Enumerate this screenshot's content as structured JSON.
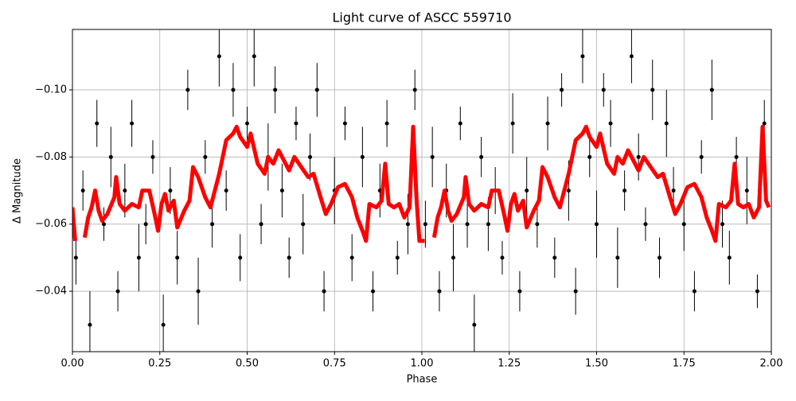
{
  "chart_data": {
    "type": "scatter",
    "title": "Light curve of ASCC 559710",
    "xlabel": "Phase",
    "ylabel": "Δ Magnitude",
    "xlim": [
      0,
      2
    ],
    "ylim": [
      -0.118,
      -0.022
    ],
    "invert_y": true,
    "grid": true,
    "xticks": [
      {
        "value": 0,
        "label": "0.00"
      },
      {
        "value": 0.25,
        "label": "0.25"
      },
      {
        "value": 0.5,
        "label": "0.50"
      },
      {
        "value": 0.75,
        "label": "0.75"
      },
      {
        "value": 1,
        "label": "1.00"
      },
      {
        "value": 1.25,
        "label": "1.25"
      },
      {
        "value": 1.5,
        "label": "1.50"
      },
      {
        "value": 1.75,
        "label": "1.75"
      },
      {
        "value": 2,
        "label": "2.00"
      }
    ],
    "yticks": [
      {
        "value": -0.1,
        "label": "−0.10"
      },
      {
        "value": -0.08,
        "label": "−0.08"
      },
      {
        "value": -0.06,
        "label": "−0.06"
      },
      {
        "value": -0.04,
        "label": "−0.04"
      }
    ],
    "points": {
      "color": "#000000",
      "x": [
        0.01,
        0.03,
        0.05,
        0.07,
        0.09,
        0.11,
        0.13,
        0.15,
        0.17,
        0.19,
        0.21,
        0.23,
        0.26,
        0.28,
        0.3,
        0.33,
        0.36,
        0.38,
        0.4,
        0.42,
        0.44,
        0.46,
        0.48,
        0.5,
        0.52,
        0.54,
        0.56,
        0.58,
        0.6,
        0.62,
        0.64,
        0.66,
        0.68,
        0.7,
        0.72,
        0.75,
        0.78,
        0.8,
        0.83,
        0.86,
        0.88,
        0.9,
        0.93,
        0.96,
        0.98,
        1.01,
        1.03,
        1.05,
        1.07,
        1.09,
        1.11,
        1.13,
        1.15,
        1.17,
        1.19,
        1.21,
        1.23,
        1.26,
        1.28,
        1.3,
        1.33,
        1.36,
        1.38,
        1.4,
        1.42,
        1.44,
        1.46,
        1.48,
        1.5,
        1.52,
        1.54,
        1.56,
        1.58,
        1.6,
        1.62,
        1.64,
        1.66,
        1.68,
        1.7,
        1.72,
        1.75,
        1.78,
        1.8,
        1.83,
        1.86,
        1.88,
        1.9,
        1.93,
        1.96,
        1.98
      ],
      "y": [
        -0.05,
        -0.07,
        -0.03,
        -0.09,
        -0.06,
        -0.08,
        -0.04,
        -0.07,
        -0.09,
        -0.05,
        -0.06,
        -0.08,
        -0.03,
        -0.07,
        -0.05,
        -0.1,
        -0.04,
        -0.08,
        -0.06,
        -0.11,
        -0.07,
        -0.1,
        -0.05,
        -0.09,
        -0.11,
        -0.06,
        -0.08,
        -0.1,
        -0.07,
        -0.05,
        -0.09,
        -0.06,
        -0.08,
        -0.1,
        -0.04,
        -0.07,
        -0.09,
        -0.05,
        -0.08,
        -0.04,
        -0.07,
        -0.09,
        -0.05,
        -0.06,
        -0.1,
        -0.06,
        -0.08,
        -0.04,
        -0.07,
        -0.05,
        -0.09,
        -0.06,
        -0.03,
        -0.08,
        -0.06,
        -0.07,
        -0.05,
        -0.09,
        -0.04,
        -0.07,
        -0.06,
        -0.09,
        -0.05,
        -0.1,
        -0.07,
        -0.04,
        -0.11,
        -0.08,
        -0.06,
        -0.1,
        -0.09,
        -0.05,
        -0.07,
        -0.11,
        -0.08,
        -0.06,
        -0.1,
        -0.05,
        -0.09,
        -0.07,
        -0.06,
        -0.04,
        -0.08,
        -0.1,
        -0.06,
        -0.05,
        -0.08,
        -0.07,
        -0.04,
        -0.09
      ],
      "err": [
        0.008,
        0.006,
        0.01,
        0.007,
        0.005,
        0.009,
        0.006,
        0.008,
        0.007,
        0.01,
        0.006,
        0.005,
        0.009,
        0.007,
        0.008,
        0.006,
        0.01,
        0.005,
        0.007,
        0.009,
        0.006,
        0.008,
        0.007,
        0.005,
        0.009,
        0.006,
        0.01,
        0.007,
        0.008,
        0.006,
        0.005,
        0.009,
        0.007,
        0.008,
        0.006,
        0.01,
        0.005,
        0.007,
        0.009,
        0.006,
        0.008,
        0.007,
        0.005,
        0.009,
        0.006,
        0.007,
        0.009,
        0.006,
        0.008,
        0.01,
        0.005,
        0.007,
        0.009,
        0.006,
        0.008,
        0.007,
        0.005,
        0.009,
        0.006,
        0.01,
        0.007,
        0.008,
        0.006,
        0.005,
        0.009,
        0.007,
        0.008,
        0.006,
        0.01,
        0.005,
        0.007,
        0.009,
        0.006,
        0.008,
        0.007,
        0.005,
        0.009,
        0.006,
        0.01,
        0.007,
        0.008,
        0.006,
        0.005,
        0.009,
        0.007,
        0.008,
        0.006,
        0.01,
        0.005,
        0.007
      ]
    },
    "curve": {
      "color": "#ff0000",
      "x": [
        0,
        0.008,
        0.02,
        0.035,
        0.045,
        0.055,
        0.065,
        0.075,
        0.085,
        0.1,
        0.12,
        0.125,
        0.135,
        0.15,
        0.17,
        0.19,
        0.2,
        0.22,
        0.235,
        0.245,
        0.255,
        0.265,
        0.275,
        0.29,
        0.3,
        0.32,
        0.335,
        0.345,
        0.36,
        0.38,
        0.395,
        0.42,
        0.44,
        0.46,
        0.47,
        0.48,
        0.5,
        0.51,
        0.53,
        0.55,
        0.56,
        0.575,
        0.59,
        0.61,
        0.62,
        0.635,
        0.655,
        0.675,
        0.69,
        0.71,
        0.725,
        0.74,
        0.76,
        0.78,
        0.8,
        0.815,
        0.83,
        0.84,
        0.85,
        0.87,
        0.885,
        0.895,
        0.905,
        0.92,
        0.935,
        0.95,
        0.965,
        0.975,
        0.985,
        0.993,
        1.0,
        1.008,
        1.02,
        1.035,
        1.045,
        1.055,
        1.065,
        1.075,
        1.085,
        1.1,
        1.12,
        1.125,
        1.135,
        1.15,
        1.17,
        1.19,
        1.2,
        1.22,
        1.235,
        1.245,
        1.255,
        1.265,
        1.275,
        1.29,
        1.3,
        1.32,
        1.335,
        1.345,
        1.36,
        1.38,
        1.395,
        1.42,
        1.44,
        1.46,
        1.47,
        1.48,
        1.5,
        1.51,
        1.53,
        1.55,
        1.56,
        1.575,
        1.59,
        1.61,
        1.62,
        1.635,
        1.655,
        1.675,
        1.69,
        1.71,
        1.725,
        1.74,
        1.76,
        1.78,
        1.8,
        1.815,
        1.83,
        1.84,
        1.85,
        1.87,
        1.885,
        1.895,
        1.905,
        1.92,
        1.935,
        1.95,
        1.965,
        1.975,
        1.985,
        1.993
      ],
      "values": [
        -0.065,
        -0.055,
        null,
        -0.056,
        -0.062,
        -0.065,
        -0.07,
        -0.064,
        -0.061,
        -0.063,
        -0.068,
        -0.074,
        -0.066,
        -0.064,
        -0.066,
        -0.065,
        -0.07,
        -0.07,
        -0.063,
        -0.058,
        -0.066,
        -0.069,
        -0.064,
        -0.067,
        -0.059,
        -0.064,
        -0.067,
        -0.077,
        -0.074,
        -0.068,
        -0.065,
        -0.075,
        -0.085,
        -0.087,
        -0.089,
        -0.086,
        -0.083,
        -0.087,
        -0.078,
        -0.075,
        -0.08,
        -0.078,
        -0.082,
        -0.078,
        -0.076,
        -0.08,
        -0.077,
        -0.074,
        -0.075,
        -0.068,
        -0.063,
        -0.066,
        -0.071,
        -0.072,
        -0.068,
        -0.062,
        -0.058,
        -0.055,
        -0.066,
        -0.065,
        -0.067,
        -0.078,
        -0.066,
        -0.065,
        -0.066,
        -0.062,
        -0.065,
        -0.089,
        -0.067,
        -0.055,
        -0.055,
        -0.055,
        null,
        -0.056,
        -0.062,
        -0.065,
        -0.07,
        -0.064,
        -0.061,
        -0.063,
        -0.068,
        -0.074,
        -0.066,
        -0.064,
        -0.066,
        -0.065,
        -0.07,
        -0.07,
        -0.063,
        -0.058,
        -0.066,
        -0.069,
        -0.064,
        -0.067,
        -0.059,
        -0.064,
        -0.067,
        -0.077,
        -0.074,
        -0.068,
        -0.065,
        -0.075,
        -0.085,
        -0.087,
        -0.089,
        -0.086,
        -0.083,
        -0.087,
        -0.078,
        -0.075,
        -0.08,
        -0.078,
        -0.082,
        -0.078,
        -0.076,
        -0.08,
        -0.077,
        -0.074,
        -0.075,
        -0.068,
        -0.063,
        -0.066,
        -0.071,
        -0.072,
        -0.068,
        -0.062,
        -0.058,
        -0.055,
        -0.066,
        -0.065,
        -0.067,
        -0.078,
        -0.066,
        -0.065,
        -0.066,
        -0.062,
        -0.065,
        -0.089,
        -0.067,
        -0.065
      ]
    }
  }
}
